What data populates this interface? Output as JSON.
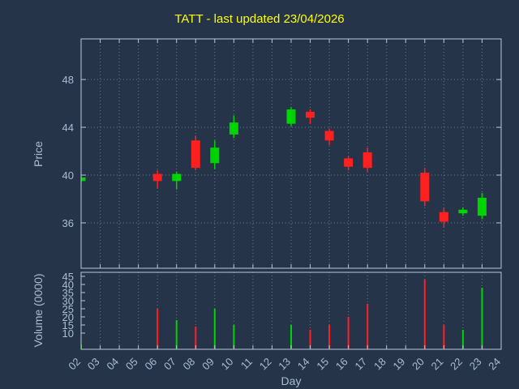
{
  "chart_data": {
    "type": "candlestick",
    "title": "TATT - last updated 23/04/2026",
    "xlabel": "Day",
    "x_range": [
      2,
      24
    ],
    "x_ticks": [
      "02",
      "03",
      "04",
      "05",
      "06",
      "07",
      "08",
      "09",
      "10",
      "11",
      "12",
      "13",
      "14",
      "15",
      "16",
      "17",
      "18",
      "19",
      "20",
      "21",
      "22",
      "23",
      "24"
    ],
    "grid": true,
    "price_panel": {
      "ylabel": "Price",
      "ylim": [
        32.2,
        51.4
      ],
      "yticks": [
        36,
        40,
        44,
        48
      ]
    },
    "volume_panel": {
      "ylabel": "Volume (0000)",
      "ylim": [
        0,
        47.5
      ],
      "yticks": [
        10,
        15,
        20,
        25,
        30,
        35,
        40,
        45
      ]
    },
    "colors": {
      "background": "#253449",
      "up": "#00d400",
      "down": "#ff2020",
      "grid": "#7d8fa5",
      "axis": "#b9c7d9",
      "text": "#aabdd4",
      "title": "#ffff00"
    },
    "candles": [
      {
        "day": 2,
        "open": 39.5,
        "high": 39.9,
        "low": 39.4,
        "close": 39.8,
        "volume": 3
      },
      {
        "day": 6,
        "open": 40.1,
        "high": 40.4,
        "low": 38.9,
        "close": 39.5,
        "volume": 25
      },
      {
        "day": 7,
        "open": 39.5,
        "high": 40.3,
        "low": 38.8,
        "close": 40.1,
        "volume": 18
      },
      {
        "day": 8,
        "open": 42.9,
        "high": 43.3,
        "low": 40.4,
        "close": 40.6,
        "volume": 14
      },
      {
        "day": 9,
        "open": 41.0,
        "high": 42.9,
        "low": 40.5,
        "close": 42.3,
        "volume": 25
      },
      {
        "day": 10,
        "open": 43.4,
        "high": 45.0,
        "low": 43.1,
        "close": 44.4,
        "volume": 15
      },
      {
        "day": 13,
        "open": 44.3,
        "high": 45.7,
        "low": 44.1,
        "close": 45.5,
        "volume": 15
      },
      {
        "day": 14,
        "open": 45.3,
        "high": 45.5,
        "low": 44.3,
        "close": 44.8,
        "volume": 12
      },
      {
        "day": 15,
        "open": 43.7,
        "high": 43.9,
        "low": 42.5,
        "close": 42.9,
        "volume": 15
      },
      {
        "day": 16,
        "open": 41.4,
        "high": 41.6,
        "low": 40.4,
        "close": 40.7,
        "volume": 20
      },
      {
        "day": 17,
        "open": 41.9,
        "high": 42.3,
        "low": 40.3,
        "close": 40.6,
        "volume": 28
      },
      {
        "day": 20,
        "open": 40.2,
        "high": 40.6,
        "low": 37.4,
        "close": 37.8,
        "volume": 43
      },
      {
        "day": 21,
        "open": 36.9,
        "high": 37.3,
        "low": 35.6,
        "close": 36.1,
        "volume": 15
      },
      {
        "day": 22,
        "open": 36.8,
        "high": 37.3,
        "low": 36.6,
        "close": 37.1,
        "volume": 12
      },
      {
        "day": 23,
        "open": 36.6,
        "high": 38.5,
        "low": 36.3,
        "close": 38.1,
        "volume": 38
      }
    ]
  }
}
